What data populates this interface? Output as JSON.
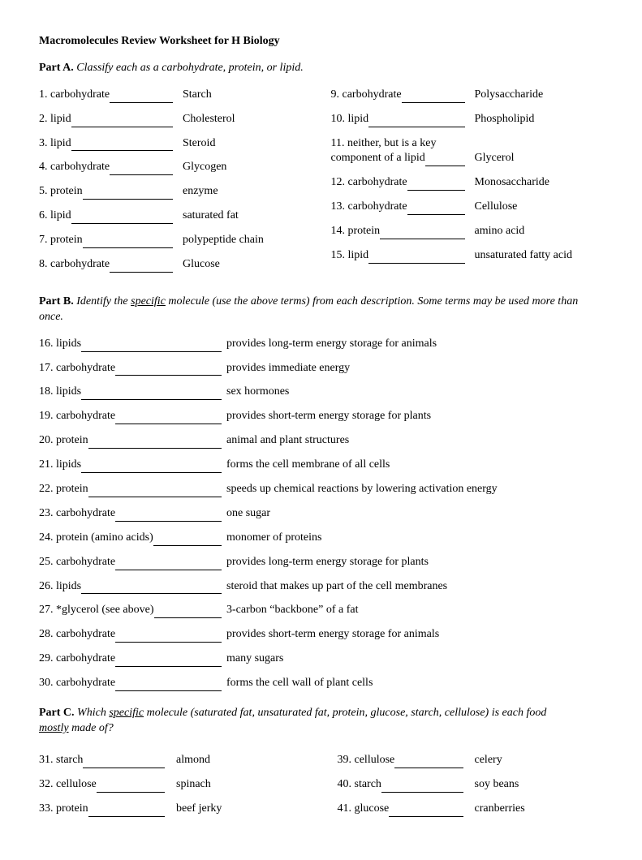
{
  "title": "Macromolecules Review Worksheet for H Biology",
  "partA": {
    "label": "Part A.",
    "instruction": "Classify each as a carbohydrate, protein, or lipid.",
    "left": [
      {
        "n": "1.",
        "ans": "carbohydrate",
        "term": "Starch"
      },
      {
        "n": "2.",
        "ans": "lipid",
        "term": "Cholesterol"
      },
      {
        "n": "3.",
        "ans": "lipid",
        "term": "Steroid"
      },
      {
        "n": "4.",
        "ans": "carbohydrate",
        "term": "Glycogen"
      },
      {
        "n": "5.",
        "ans": "protein",
        "term": "enzyme"
      },
      {
        "n": "6.",
        "ans": "lipid",
        "term": "saturated fat"
      },
      {
        "n": "7.",
        "ans": "protein",
        "term": "polypeptide chain"
      },
      {
        "n": "8.",
        "ans": "carbohydrate",
        "term": "Glucose"
      }
    ],
    "right": [
      {
        "n": "9.",
        "ans": "carbohydrate",
        "term": "Polysaccharide"
      },
      {
        "n": "10.",
        "ans": "lipid",
        "term": "Phospholipid"
      },
      {
        "n": "11.",
        "ans_top": "neither, but is a key",
        "ans_bot": "component of a lipid",
        "term": "Glycerol"
      },
      {
        "n": "12.",
        "ans": "carbohydrate",
        "term": "Monosaccharide"
      },
      {
        "n": "13.",
        "ans": "carbohydrate",
        "term": "Cellulose"
      },
      {
        "n": "14.",
        "ans": "protein",
        "term": "amino acid"
      },
      {
        "n": "15.",
        "ans": "lipid",
        "term": "unsaturated fatty acid"
      }
    ]
  },
  "partB": {
    "label": "Part B.",
    "instruction_pre": "Identify the ",
    "instruction_u": "specific",
    "instruction_post": " molecule (use the above terms) from each description. Some terms may be used more than once.",
    "items": [
      {
        "n": "16.",
        "ans": "lipids",
        "desc": "provides long-term energy storage for animals"
      },
      {
        "n": "17.",
        "ans": "carbohydrate",
        "desc": "provides immediate energy"
      },
      {
        "n": "18.",
        "ans": "lipids",
        "desc": "sex hormones"
      },
      {
        "n": "19.",
        "ans": "carbohydrate",
        "desc": "provides short-term energy storage for plants"
      },
      {
        "n": "20.",
        "ans": "protein",
        "desc": "animal and plant structures"
      },
      {
        "n": "21.",
        "ans": "lipids",
        "desc": "forms the cell membrane of all cells"
      },
      {
        "n": "22.",
        "ans": "protein",
        "desc": "speeds up chemical reactions by lowering activation energy"
      },
      {
        "n": "23.",
        "ans": "carbohydrate",
        "desc": "one sugar"
      },
      {
        "n": "24.",
        "ans": "protein (amino acids)",
        "desc": "monomer of proteins"
      },
      {
        "n": "25.",
        "ans": "carbohydrate",
        "desc": "provides long-term energy storage for plants"
      },
      {
        "n": "26.",
        "ans": "lipids",
        "desc": "steroid that makes up part of the cell membranes"
      },
      {
        "n": "27.",
        "ans": "*glycerol (see above)",
        "desc": "3-carbon “backbone” of a fat"
      },
      {
        "n": "28.",
        "ans": "carbohydrate",
        "desc": "provides short-term energy storage for animals"
      },
      {
        "n": "29.",
        "ans": "carbohydrate",
        "desc": "many sugars"
      },
      {
        "n": "30.",
        "ans": "carbohydrate",
        "desc": "forms the cell wall of plant cells"
      }
    ]
  },
  "partC": {
    "label": "Part C.",
    "instruction_pre": "Which ",
    "instruction_u": "specific",
    "instruction_mid": " molecule (saturated fat, unsaturated fat, protein, glucose, starch, cellulose) is each food ",
    "instruction_u2": "mostly",
    "instruction_post": " made of?",
    "left": [
      {
        "n": "31.",
        "ans": "starch",
        "term": "almond"
      },
      {
        "n": "32.",
        "ans": "cellulose",
        "term": "spinach"
      },
      {
        "n": "33.",
        "ans": "protein",
        "term": "beef jerky"
      }
    ],
    "right": [
      {
        "n": "39.",
        "ans": "cellulose",
        "term": "celery"
      },
      {
        "n": "40.",
        "ans": "starch",
        "term": "soy beans"
      },
      {
        "n": "41.",
        "ans": "glucose",
        "term": "cranberries"
      }
    ]
  }
}
